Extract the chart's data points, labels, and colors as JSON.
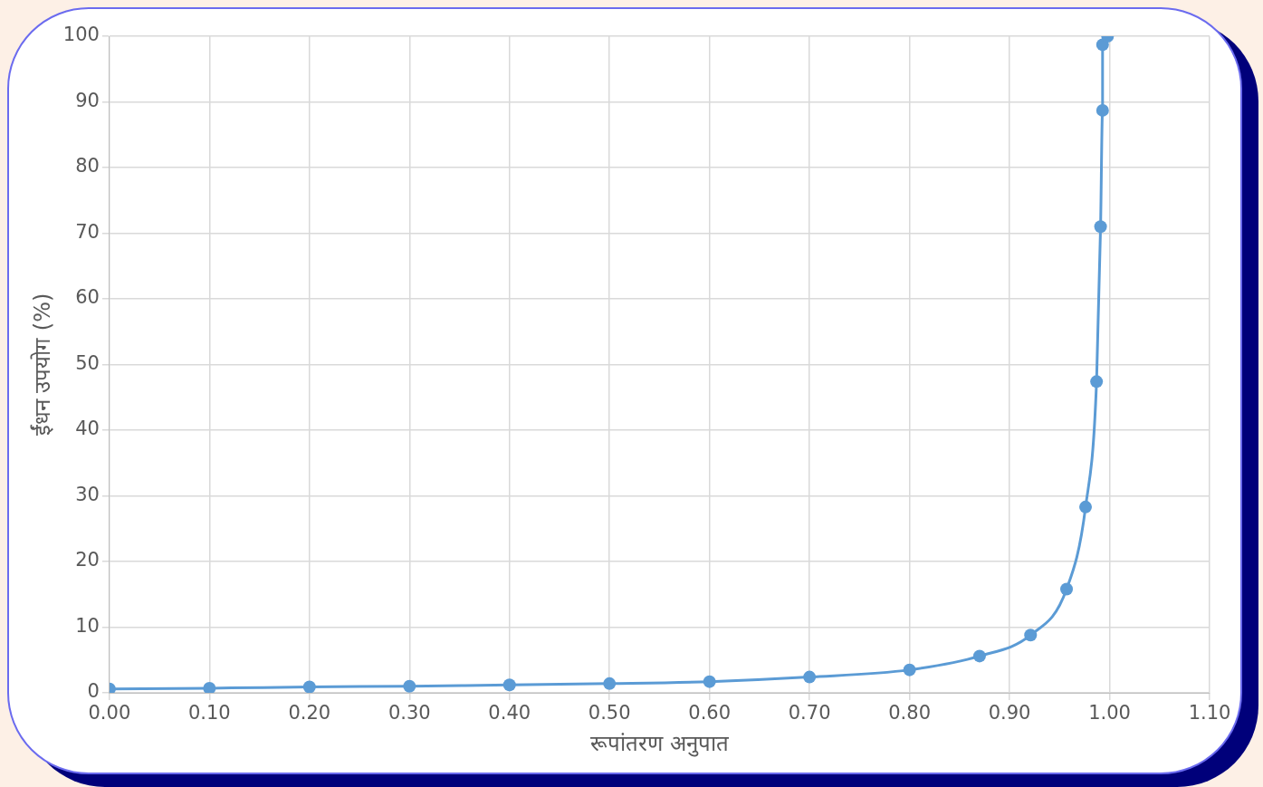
{
  "chart_data": {
    "type": "line",
    "xlabel": "रूपांतरण अनुपात",
    "ylabel": "ईंधन उपयोग (%)",
    "x": [
      0.0,
      0.1,
      0.2,
      0.3,
      0.4,
      0.5,
      0.6,
      0.7,
      0.8,
      0.87,
      0.921,
      0.957,
      0.976,
      0.987,
      0.991,
      0.993,
      0.993,
      0.998
    ],
    "series": [
      {
        "color": "#5b9bd5",
        "values": [
          0.6,
          0.7,
          0.9,
          1.0,
          1.2,
          1.4,
          1.7,
          2.4,
          3.5,
          5.6,
          8.8,
          15.8,
          28.3,
          47.4,
          71.0,
          88.7,
          98.7,
          100
        ]
      }
    ],
    "xlim": [
      0,
      1.1
    ],
    "xticks": [
      {
        "value": 0,
        "label": "0.00"
      },
      {
        "value": 0.1,
        "label": "0.10"
      },
      {
        "value": 0.2,
        "label": "0.20"
      },
      {
        "value": 0.3,
        "label": "0.30"
      },
      {
        "value": 0.4,
        "label": "0.40"
      },
      {
        "value": 0.5,
        "label": "0.50"
      },
      {
        "value": 0.6,
        "label": "0.60"
      },
      {
        "value": 0.7,
        "label": "0.70"
      },
      {
        "value": 0.8,
        "label": "0.80"
      },
      {
        "value": 0.9,
        "label": "0.90"
      },
      {
        "value": 1.0,
        "label": "1.00"
      },
      {
        "value": 1.1,
        "label": "1.10"
      }
    ],
    "ylim": [
      0,
      100
    ],
    "yticks": [
      0,
      10,
      20,
      30,
      40,
      50,
      60,
      70,
      80,
      90,
      100
    ],
    "grid": true,
    "legend": false,
    "marker": "circle",
    "line_style": "solid"
  }
}
